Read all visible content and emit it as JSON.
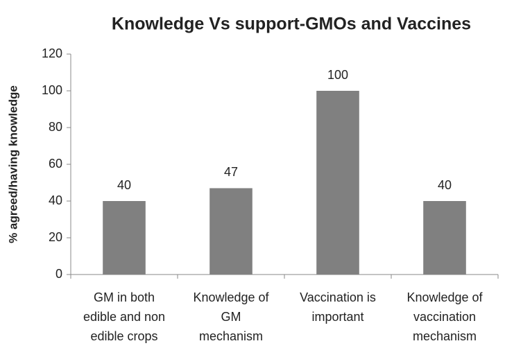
{
  "chart_data": {
    "type": "bar",
    "title": "Knowledge Vs support-GMOs and Vaccines",
    "ylabel": "% agreed/having knowledge",
    "categories": [
      "GM in both\nedible and non\nedible crops",
      "Knowledge of\nGM\nmechanism",
      "Vaccination is\nimportant",
      "Knowledge of\nvaccination\nmechanism"
    ],
    "values": [
      40,
      47,
      100,
      40
    ],
    "color": "#808080",
    "ylim": [
      0,
      120
    ],
    "yticks": [
      0,
      20,
      40,
      60,
      80,
      100,
      120
    ],
    "grid": false
  }
}
